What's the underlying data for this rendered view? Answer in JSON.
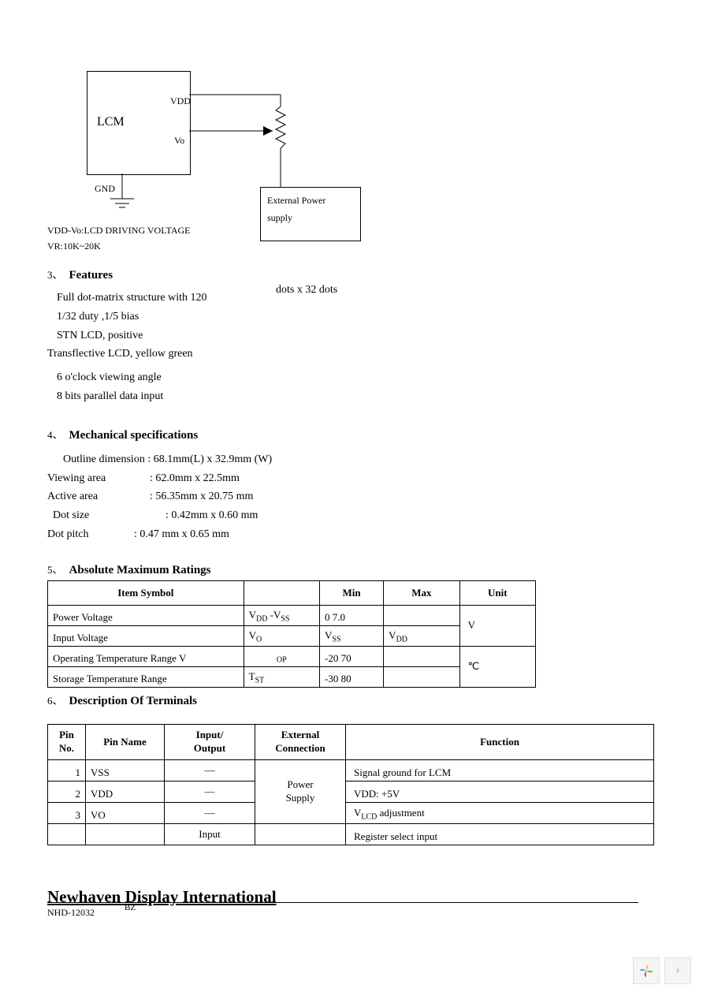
{
  "diagram": {
    "lcm": "LCM",
    "vdd": "VDD",
    "vo": "Vo",
    "gnd": "GND",
    "note1": "VDD-Vo:LCD DRIVING VOLTAGE",
    "note2": "VR:10K~20K",
    "ext_line1": "External Power",
    "ext_line2": "supply"
  },
  "sections": {
    "s3_num": "3、",
    "s3_title": "Features",
    "s4_num": "4、",
    "s4_title": "Mechanical specifications",
    "s5_num": "5、",
    "s5_title": "Absolute Maximum Ratings",
    "s6_num": "6、",
    "s6_title": "Description Of Terminals"
  },
  "features": {
    "side": "dots x 32 dots",
    "l1": "Full dot-matrix structure with 120",
    "l2": "1/32 duty ,1/5 bias",
    "l3": "STN LCD, positive",
    "l4": "Transflective LCD, yellow green",
    "l5": "6 o'clock viewing angle",
    "l6": "8 bits parallel data input"
  },
  "mech": {
    "l1": "Outline dimension : 68.1mm(L) x 32.9mm (W)",
    "r2a": "Viewing area",
    "r2b": ":  62.0mm   x 22.5mm",
    "r3a": "Active area",
    "r3b": ": 56.35mm  x 20.75 mm",
    "r4a": "  Dot size",
    "r4b": ": 0.42mm     x 0.60 mm",
    "r5a": "Dot pitch",
    "r5b": ": 0.47 mm   x 0.65 mm"
  },
  "amr": {
    "headers": [
      "Item Symbol",
      "",
      "Min",
      "Max",
      "Unit"
    ],
    "rows": [
      {
        "c1": "Power  Voltage",
        "c2": "V<sub>DD</sub> -V<sub>SS</sub>",
        "c3": "0 7.0",
        "c4": ""
      },
      {
        "c1": "Input  Voltage",
        "c2": "V<sub>O</sub>",
        "c3": "V<sub>SS</sub>",
        "c4": "V<sub>DD</sub>"
      },
      {
        "c1": "Operating Temperature Range  V",
        "c2": "<sub>OP</sub>",
        "c3": "-20 70",
        "c4": ""
      },
      {
        "c1": "Storage Temperature Range",
        "c2": "T<sub>ST</sub>",
        "c3": "-30 80",
        "c4": ""
      }
    ],
    "unit1": "V",
    "unit2": "℃"
  },
  "terminals": {
    "headers": {
      "pin_no": "Pin No.",
      "pin_name": "Pin Name",
      "io": "Input/ Output",
      "ext": "External Connection",
      "func": "Function"
    },
    "ext_merged": "Power Supply",
    "rows": [
      {
        "no": "1",
        "name": "VSS",
        "io": "—",
        "func": "Signal ground for LCM"
      },
      {
        "no": "2",
        "name": "VDD",
        "io": "—",
        "func": "VDD: +5V"
      },
      {
        "no": "3",
        "name": "VO",
        "io": "—",
        "func": "V<sub>LCD</sub>  adjustment"
      },
      {
        "no": "",
        "name": "",
        "io": "Input",
        "func": "Register select  input"
      }
    ]
  },
  "footer": {
    "title": "Newhaven Display International",
    "sub": "NHD-12032",
    "bz": "BZ"
  }
}
